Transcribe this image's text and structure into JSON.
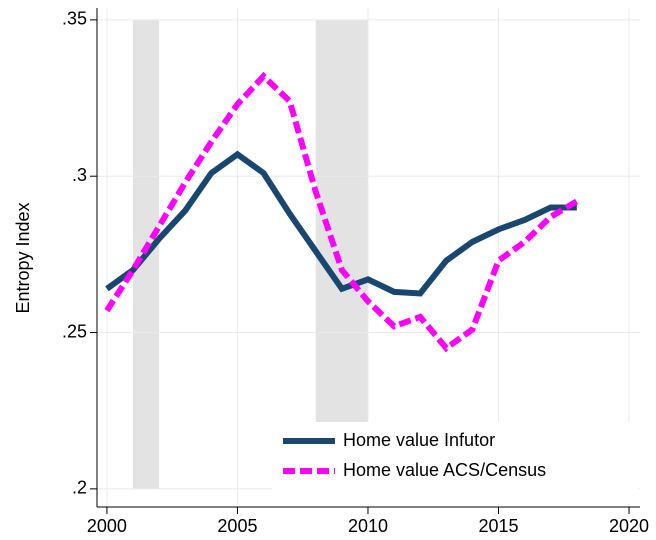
{
  "chart_data": {
    "type": "line",
    "y_label": "Entropy Index",
    "x": [
      2000,
      2001,
      2002,
      2003,
      2004,
      2005,
      2006,
      2007,
      2008,
      2009,
      2010,
      2011,
      2012,
      2013,
      2014,
      2015,
      2016,
      2017,
      2018
    ],
    "series": [
      {
        "name": "Home value Infutor",
        "color": "#1a476f",
        "dash": "solid",
        "values": [
          0.264,
          0.27,
          0.28,
          0.289,
          0.301,
          0.307,
          0.301,
          0.288,
          0.276,
          0.264,
          0.267,
          0.263,
          0.2625,
          0.273,
          0.279,
          0.283,
          0.286,
          0.29,
          0.29
        ]
      },
      {
        "name": "Home value ACS/Census",
        "color": "#ff00ff",
        "dash": "dashed",
        "values": [
          0.257,
          0.27,
          0.284,
          0.298,
          0.311,
          0.323,
          0.332,
          0.324,
          0.295,
          0.27,
          0.26,
          0.252,
          0.255,
          0.245,
          0.251,
          0.273,
          0.279,
          0.287,
          0.292
        ]
      }
    ],
    "shaded_regions": [
      [
        2001,
        2002
      ],
      [
        2008,
        2010
      ]
    ],
    "shade_color": "#e3e3e3",
    "xlim": [
      1999.62,
      2020.42
    ],
    "ylim": [
      0.1942,
      0.3538
    ],
    "xticks": [
      2000,
      2005,
      2010,
      2015,
      2020
    ],
    "yticks": [
      {
        "value": 0.2,
        "label": ".2"
      },
      {
        "value": 0.25,
        "label": ".25"
      },
      {
        "value": 0.3,
        "label": ".3"
      },
      {
        "value": 0.35,
        "label": ".35"
      }
    ],
    "grid": true,
    "legend_position": "lower-right"
  }
}
